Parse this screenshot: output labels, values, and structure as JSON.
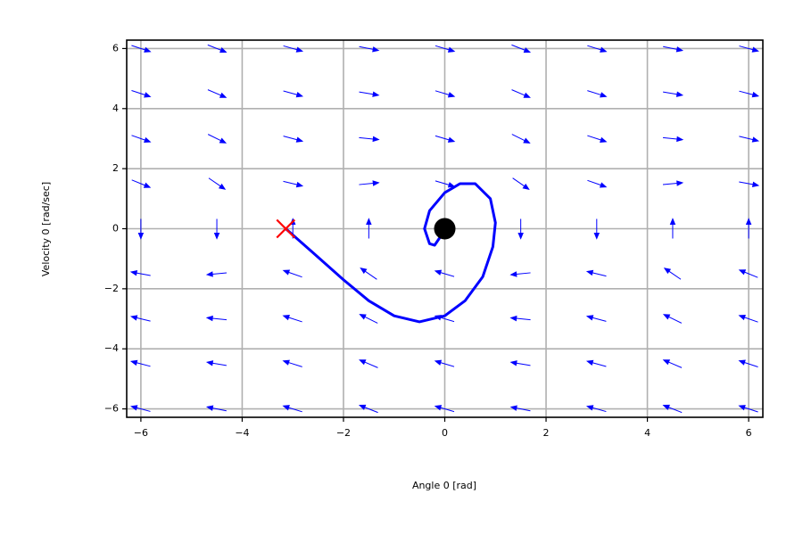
{
  "chart_data": {
    "type": "phase-portrait",
    "xlabel": "Angle 0 [rad]",
    "ylabel": "Velocity 0 [rad/sec]",
    "xlim": [
      -6.28,
      6.28
    ],
    "ylim": [
      -6.28,
      6.28
    ],
    "xticks": [
      {
        "value": -6,
        "label": "−6"
      },
      {
        "value": -4,
        "label": "−4"
      },
      {
        "value": -2,
        "label": "−2"
      },
      0,
      2,
      4,
      6
    ],
    "yticks": [
      {
        "value": -6,
        "label": "−6"
      },
      {
        "value": -4,
        "label": "−4"
      },
      {
        "value": -2,
        "label": "−2"
      },
      0,
      2,
      4,
      6
    ],
    "grid": true,
    "quiver": {
      "color": "#0000ff",
      "x": [
        -6,
        -4.5,
        -3,
        -1.5,
        0,
        1.5,
        3,
        4.5,
        6
      ],
      "y": [
        -6,
        -4.5,
        -3,
        -1.5,
        0,
        1.5,
        3,
        4.5,
        6
      ],
      "u": [
        [
          -6,
          -6,
          -6,
          -6,
          -6,
          -6,
          -6,
          -6,
          -6
        ],
        [
          -4.5,
          -4.5,
          -4.5,
          -4.5,
          -4.5,
          -4.5,
          -4.5,
          -4.5,
          -4.5
        ],
        [
          -3,
          -3,
          -3,
          -3,
          -3,
          -3,
          -3,
          -3,
          -3
        ],
        [
          -1.5,
          -1.5,
          -1.5,
          -1.5,
          -1.5,
          -1.5,
          -1.5,
          -1.5,
          -1.5
        ],
        [
          0,
          0,
          0,
          0,
          0,
          0,
          0,
          0,
          0
        ],
        [
          1.5,
          1.5,
          1.5,
          1.5,
          1.5,
          1.5,
          1.5,
          1.5,
          1.5
        ],
        [
          3,
          3,
          3,
          3,
          3,
          3,
          3,
          3,
          3
        ],
        [
          4.5,
          4.5,
          4.5,
          4.5,
          4.5,
          4.5,
          4.5,
          4.5,
          4.5
        ],
        [
          6,
          6,
          6,
          6,
          6,
          6,
          6,
          6,
          6
        ]
      ],
      "v": [
        [
          2.72,
          2.02,
          3.14,
          4.0,
          3.0,
          2.0,
          2.86,
          3.98,
          3.28
        ],
        [
          1.97,
          1.27,
          2.39,
          3.25,
          2.25,
          1.25,
          2.11,
          3.23,
          2.53
        ],
        [
          1.22,
          0.52,
          1.64,
          2.5,
          1.5,
          0.5,
          1.36,
          2.48,
          1.78
        ],
        [
          0.47,
          -0.23,
          0.89,
          1.75,
          0.75,
          -0.25,
          0.61,
          1.73,
          1.03
        ],
        [
          -0.28,
          -0.98,
          0.14,
          1.0,
          0.0,
          -1.0,
          -0.14,
          0.98,
          0.28
        ],
        [
          -1.03,
          -1.73,
          -0.61,
          0.25,
          -0.75,
          -1.75,
          -0.89,
          0.23,
          -0.47
        ],
        [
          -1.78,
          -2.48,
          -1.36,
          -0.5,
          -1.5,
          -2.5,
          -1.64,
          -0.52,
          -1.22
        ],
        [
          -2.53,
          -3.23,
          -2.11,
          -1.25,
          -2.25,
          -3.25,
          -2.39,
          -1.27,
          -1.97
        ],
        [
          -3.28,
          -3.98,
          -2.86,
          -2.0,
          -3.0,
          -4.0,
          -3.14,
          -2.02,
          -2.72
        ]
      ]
    },
    "trajectory": {
      "color": "#0000ff",
      "x": [
        -3.14,
        -2.6,
        -2.0,
        -1.5,
        -1.0,
        -0.5,
        0.0,
        0.4,
        0.75,
        0.95,
        1.0,
        0.9,
        0.6,
        0.3,
        0.0,
        -0.3,
        -0.4,
        -0.3,
        -0.2,
        -0.1,
        0.0
      ],
      "y": [
        0.0,
        -0.8,
        -1.7,
        -2.4,
        -2.9,
        -3.1,
        -2.9,
        -2.4,
        -1.6,
        -0.6,
        0.2,
        1.0,
        1.5,
        1.5,
        1.2,
        0.6,
        0.0,
        -0.5,
        -0.55,
        -0.3,
        0.0
      ]
    },
    "markers": [
      {
        "x": -3.14,
        "y": 0,
        "color": "#ff0000",
        "shape": "x"
      },
      {
        "x": 0,
        "y": 0,
        "color": "#000000",
        "shape": "circle"
      }
    ]
  }
}
